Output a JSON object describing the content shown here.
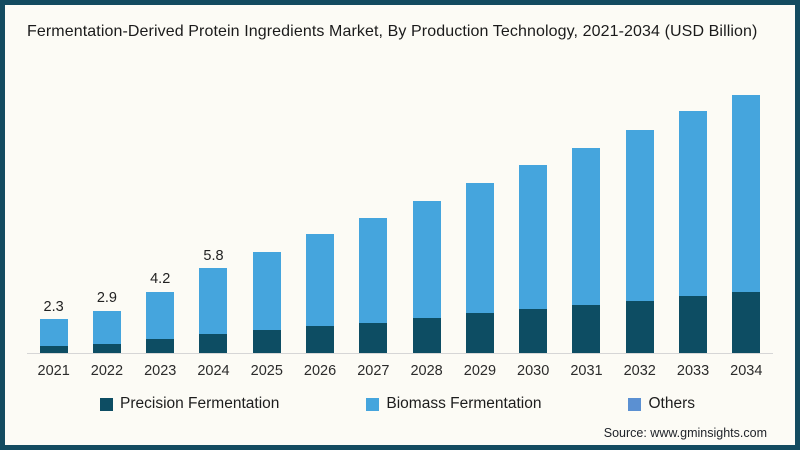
{
  "header": {
    "title": "Fermentation-Derived Protein Ingredients Market, By Production Technology, 2021-2034 (USD Billion)"
  },
  "source_text": "Source: www.gminsights.com",
  "colors": {
    "frame_border": "#134b5f",
    "background": "#fcfbf5",
    "precision_fermentation": "#0d4d63",
    "biomass_fermentation": "#45a5dd",
    "others": "#5b90d2",
    "axis_line": "#d6d6d6"
  },
  "legend": {
    "items": [
      {
        "label": "Precision Fermentation",
        "color": "#0d4d63"
      },
      {
        "label": "Biomass Fermentation",
        "color": "#45a5dd"
      },
      {
        "label": "Others",
        "color": "#5b90d2"
      }
    ]
  },
  "chart_data": {
    "type": "bar",
    "stacked": true,
    "title": "Fermentation-Derived Protein Ingredients Market, By Production Technology, 2021-2034 (USD Billion)",
    "xlabel": "",
    "ylabel": "USD Billion",
    "grid": false,
    "legend_position": "bottom",
    "categories": [
      "2021",
      "2022",
      "2023",
      "2024",
      "2025",
      "2026",
      "2027",
      "2028",
      "2029",
      "2030",
      "2031",
      "2032",
      "2033",
      "2034"
    ],
    "series": [
      {
        "name": "Precision Fermentation",
        "color": "#0d4d63",
        "values": [
          0.5,
          0.65,
          0.95,
          1.3,
          1.55,
          1.85,
          2.05,
          2.4,
          2.7,
          3.0,
          3.3,
          3.55,
          3.9,
          4.2
        ]
      },
      {
        "name": "Biomass Fermentation",
        "color": "#45a5dd",
        "values": [
          1.8,
          2.25,
          3.25,
          4.5,
          5.35,
          6.25,
          7.15,
          8.0,
          8.9,
          9.8,
          10.7,
          11.65,
          12.6,
          13.4
        ]
      }
    ],
    "totals": [
      2.3,
      2.9,
      4.2,
      5.8,
      6.9,
      8.1,
      9.2,
      10.4,
      11.6,
      12.8,
      14.0,
      15.2,
      16.5,
      17.6
    ],
    "data_labels": [
      "2.3",
      "2.9",
      "4.2",
      "5.8",
      "",
      "",
      "",
      "",
      "",
      "",
      "",
      "",
      "",
      ""
    ],
    "ylim": [
      0,
      19
    ]
  }
}
